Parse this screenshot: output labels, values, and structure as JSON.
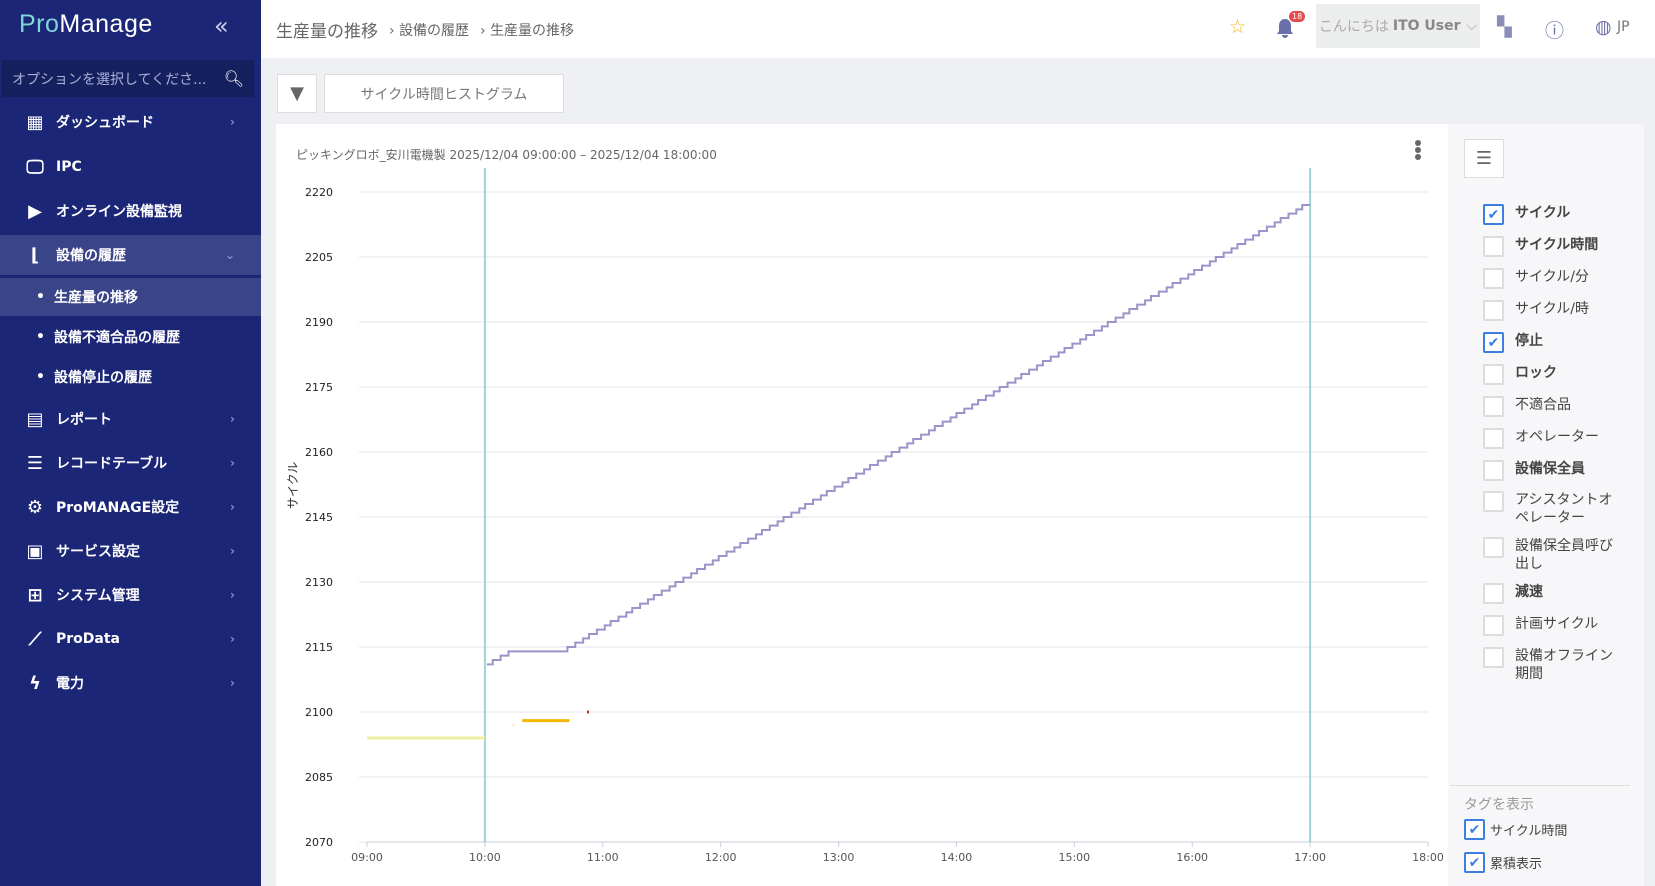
{
  "app": {
    "logo": "ProManage"
  },
  "sidebar": {
    "search_placeholder": "オプションを選択してくださ...",
    "items": [
      {
        "label": "ダッシュボード",
        "icon": "dashboard-icon"
      },
      {
        "label": "IPC",
        "icon": "monitor-icon"
      },
      {
        "label": "オンライン設備監視",
        "icon": "video-icon"
      },
      {
        "label": "設備の履歴",
        "icon": "history-chart-icon"
      },
      {
        "label": "レポート",
        "icon": "clipboard-icon"
      },
      {
        "label": "レコードテーブル",
        "icon": "list-icon"
      },
      {
        "label": "ProMANAGE設定",
        "icon": "gear-icon"
      },
      {
        "label": "サービス設定",
        "icon": "service-settings-icon"
      },
      {
        "label": "システム管理",
        "icon": "system-admin-icon"
      },
      {
        "label": "ProData",
        "icon": "line-chart-icon"
      },
      {
        "label": "電力",
        "icon": "lightning-icon"
      }
    ],
    "subitems": [
      "生産量の推移",
      "設備不適合品の履歴",
      "設備停止の履歴"
    ]
  },
  "header": {
    "title": "生産量の推移",
    "breadcrumbs": [
      "設備の履歴",
      "生産量の推移"
    ],
    "notification_count": "18",
    "greeting": "こんにちは",
    "user": "ITO User",
    "language": "JP"
  },
  "toolbar": {
    "histogram_label": "サイクル時間ヒストグラム"
  },
  "chart_data": {
    "type": "line",
    "title": "ピッキングロボ_安川電機製 2025/12/04 09:00:00 – 2025/12/04 18:00:00",
    "ylabel": "サイクル",
    "xlim": [
      "09:00",
      "18:00"
    ],
    "ylim": [
      2070,
      2220
    ],
    "x_ticks": [
      "09:00",
      "10:00",
      "11:00",
      "12:00",
      "13:00",
      "14:00",
      "15:00",
      "16:00",
      "17:00",
      "18:00"
    ],
    "y_ticks": [
      2070,
      2085,
      2100,
      2115,
      2130,
      2145,
      2160,
      2175,
      2190,
      2205,
      2220
    ],
    "grid": true,
    "markers": {
      "times": [
        "10:00",
        "17:00"
      ],
      "color": "#9fd3d6"
    },
    "series": [
      {
        "name": "サイクル",
        "style": "step",
        "color": "#9b93c9",
        "x": [
          "10:01",
          "10:04",
          "10:08",
          "10:12",
          "10:42",
          "10:46",
          "10:50",
          "10:53",
          "10:57",
          "11:01",
          "11:04",
          "11:08",
          "11:12",
          "11:15",
          "11:19",
          "11:23",
          "11:26",
          "11:30",
          "11:34",
          "11:37",
          "11:41",
          "11:45",
          "11:48",
          "11:52",
          "11:56",
          "11:59",
          "12:03",
          "12:07",
          "12:10",
          "12:14",
          "12:18",
          "12:21",
          "12:25",
          "12:29",
          "12:32",
          "12:36",
          "12:40",
          "12:43",
          "12:47",
          "12:51",
          "12:54",
          "12:58",
          "13:02",
          "13:05",
          "13:09",
          "13:13",
          "13:16",
          "13:20",
          "13:24",
          "13:27",
          "13:31",
          "13:35",
          "13:38",
          "13:42",
          "13:46",
          "13:49",
          "13:53",
          "13:57",
          "14:00",
          "14:04",
          "14:08",
          "14:11",
          "14:15",
          "14:19",
          "14:22",
          "14:26",
          "14:30",
          "14:33",
          "14:37",
          "14:41",
          "14:44",
          "14:48",
          "14:52",
          "14:55",
          "14:59",
          "15:03",
          "15:06",
          "15:10",
          "15:14",
          "15:17",
          "15:21",
          "15:25",
          "15:28",
          "15:32",
          "15:36",
          "15:39",
          "15:43",
          "15:47",
          "15:50",
          "15:54",
          "15:58",
          "16:01",
          "16:05",
          "16:09",
          "16:12",
          "16:16",
          "16:20",
          "16:23",
          "16:27",
          "16:31",
          "16:34",
          "16:38",
          "16:42",
          "16:45",
          "16:49",
          "16:53",
          "16:56",
          "17:00"
        ],
        "y": [
          2111,
          2112,
          2113,
          2114,
          2115,
          2116,
          2117,
          2118,
          2119,
          2120,
          2121,
          2122,
          2123,
          2124,
          2125,
          2126,
          2127,
          2128,
          2129,
          2130,
          2131,
          2132,
          2133,
          2134,
          2135,
          2136,
          2137,
          2138,
          2139,
          2140,
          2141,
          2142,
          2143,
          2144,
          2145,
          2146,
          2147,
          2148,
          2149,
          2150,
          2151,
          2152,
          2153,
          2154,
          2155,
          2156,
          2157,
          2158,
          2159,
          2160,
          2161,
          2162,
          2163,
          2164,
          2165,
          2166,
          2167,
          2168,
          2169,
          2170,
          2171,
          2172,
          2173,
          2174,
          2175,
          2176,
          2177,
          2178,
          2179,
          2180,
          2181,
          2182,
          2183,
          2184,
          2185,
          2186,
          2187,
          2188,
          2189,
          2190,
          2191,
          2192,
          2193,
          2194,
          2195,
          2196,
          2197,
          2198,
          2199,
          2200,
          2201,
          2202,
          2203,
          2204,
          2205,
          2206,
          2207,
          2208,
          2209,
          2210,
          2211,
          2212,
          2213,
          2214,
          2215,
          2216,
          2217,
          2217
        ]
      },
      {
        "name": "停止",
        "style": "segments",
        "segments": [
          {
            "start": "09:00",
            "end": "10:00",
            "y": 2094,
            "color": "#eef0a0"
          },
          {
            "start": "10:14",
            "end": "10:15",
            "y": 2097,
            "color": "#f6f2cf"
          },
          {
            "start": "10:19",
            "end": "10:43",
            "y": 2098,
            "color": "#f5b800"
          },
          {
            "start": "10:52",
            "end": "10:53",
            "y": 2100,
            "color": "#d9261c"
          }
        ]
      }
    ]
  },
  "panel": {
    "options": [
      {
        "label": "サイクル",
        "checked": true,
        "bold": true
      },
      {
        "label": "サイクル時間",
        "checked": false,
        "bold": true
      },
      {
        "label": "サイクル/分",
        "checked": false,
        "bold": false
      },
      {
        "label": "サイクル/時",
        "checked": false,
        "bold": false
      },
      {
        "label": "停止",
        "checked": true,
        "bold": true
      },
      {
        "label": "ロック",
        "checked": false,
        "bold": true
      },
      {
        "label": "不適合品",
        "checked": false,
        "bold": false
      },
      {
        "label": "オペレーター",
        "checked": false,
        "bold": false
      },
      {
        "label": "設備保全員",
        "checked": false,
        "bold": true
      },
      {
        "label": "アシスタントオペレーター",
        "checked": false,
        "bold": false
      },
      {
        "label": "設備保全員呼び出し",
        "checked": false,
        "bold": false
      },
      {
        "label": "減速",
        "checked": false,
        "bold": true
      },
      {
        "label": "計画サイクル",
        "checked": false,
        "bold": false
      },
      {
        "label": "設備オフライン期間",
        "checked": false,
        "bold": false
      }
    ],
    "tags_heading": "タグを表示",
    "tags": [
      {
        "label": "サイクル時間",
        "checked": true
      },
      {
        "label": "累積表示",
        "checked": true
      }
    ]
  },
  "colors": {
    "sidebar": "#1c2676",
    "accent": "#3d7fe0",
    "badge": "#e34a4a",
    "star": "#f0b429"
  }
}
